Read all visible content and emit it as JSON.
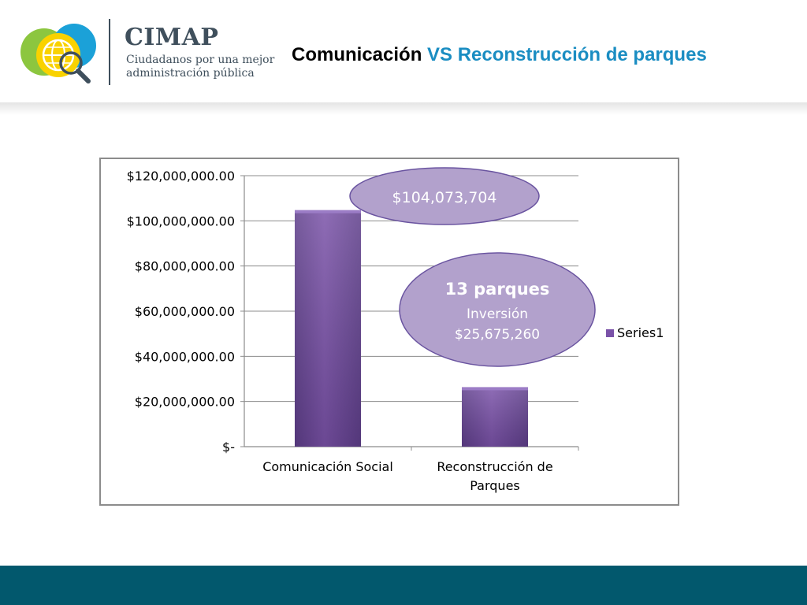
{
  "header": {
    "brand": "CIMAP",
    "tagline": "Ciudadanos por una mejor\nadministración pública",
    "title_part1": "Comunicación",
    "title_part2": " VS Reconstrucción de parques",
    "logo_icon": "globe-magnifier-icon"
  },
  "colors": {
    "bar": "#7a52a8",
    "bubble": "#b2a1cc",
    "bubble_stroke": "#6a54a0",
    "title_accent": "#1a8dc2",
    "footer": "#02586d",
    "logo_green": "#8cc63f",
    "logo_blue": "#1ba1d8",
    "logo_yellow": "#f9d200"
  },
  "chart_data": {
    "type": "bar",
    "categories": [
      "Comunicación Social",
      "Reconstrucción de Parques"
    ],
    "series": [
      {
        "name": "Series1",
        "values": [
          104073704,
          25675260
        ]
      }
    ],
    "y_ticks": [
      0,
      20000000,
      40000000,
      60000000,
      80000000,
      100000000,
      120000000
    ],
    "y_tick_labels": [
      "$-",
      "$20,000,000.00",
      "$40,000,000.00",
      "$60,000,000.00",
      "$80,000,000.00",
      "$100,000,000.00",
      "$120,000,000.00"
    ],
    "ylim": [
      0,
      120000000
    ],
    "grid": true,
    "legend": "right",
    "title": "",
    "xlabel": "",
    "ylabel": "",
    "annotations": [
      {
        "lines": [
          "$104,073,704"
        ]
      },
      {
        "lines": [
          "13 parques",
          "Inversión",
          "$25,675,260"
        ]
      }
    ]
  }
}
